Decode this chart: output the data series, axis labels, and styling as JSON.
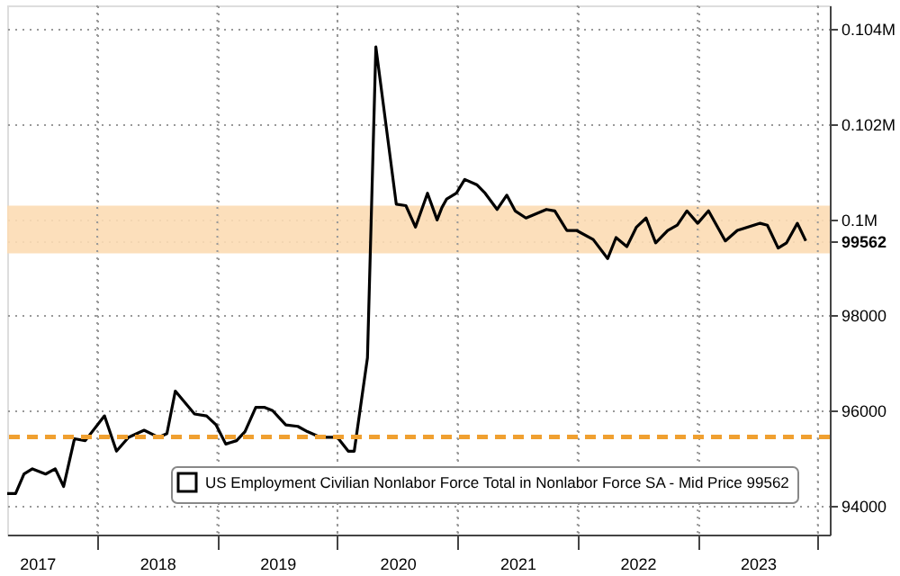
{
  "chart_data": {
    "type": "line",
    "x": [
      2017.25,
      2017.32,
      2017.39,
      2017.46,
      2017.57,
      2017.65,
      2017.72,
      2017.81,
      2017.9,
      2018.06,
      2018.16,
      2018.26,
      2018.39,
      2018.51,
      2018.58,
      2018.65,
      2018.81,
      2018.91,
      2018.99,
      2019.07,
      2019.16,
      2019.23,
      2019.32,
      2019.39,
      2019.46,
      2019.57,
      2019.67,
      2019.75,
      2019.86,
      2020.0,
      2020.09,
      2020.14,
      2020.25,
      2020.32,
      2020.49,
      2020.57,
      2020.65,
      2020.75,
      2020.83,
      2020.87,
      2020.91,
      2020.99,
      2021.06,
      2021.16,
      2021.23,
      2021.33,
      2021.41,
      2021.48,
      2021.57,
      2021.74,
      2021.81,
      2021.91,
      2021.99,
      2022.13,
      2022.25,
      2022.32,
      2022.41,
      2022.49,
      2022.57,
      2022.65,
      2022.75,
      2022.83,
      2022.91,
      2023.0,
      2023.09,
      2023.23,
      2023.33,
      2023.52,
      2023.58,
      2023.67,
      2023.74,
      2023.83,
      2023.9
    ],
    "series": [
      {
        "name": "US Employment Civilian Nonlabor Force Total in Nonlabor Force SA - Mid Price 99562",
        "color": "#000000",
        "values": [
          94260,
          94260,
          94670,
          94780,
          94670,
          94780,
          94410,
          95410,
          95370,
          95890,
          95150,
          95440,
          95590,
          95440,
          95520,
          96410,
          95930,
          95890,
          95700,
          95300,
          95370,
          95560,
          96070,
          96070,
          96000,
          95700,
          95670,
          95560,
          95440,
          95440,
          95150,
          95150,
          97110,
          103630,
          100330,
          100300,
          99850,
          100560,
          100000,
          100260,
          100440,
          100560,
          100850,
          100740,
          100560,
          100220,
          100520,
          100190,
          100040,
          100220,
          100190,
          99780,
          99780,
          99590,
          99190,
          99630,
          99440,
          99850,
          100040,
          99520,
          99780,
          99890,
          100190,
          99930,
          100190,
          99560,
          99780,
          99930,
          99890,
          99410,
          99520,
          99930,
          99562
        ]
      }
    ],
    "xlim": [
      2017.25,
      2024.1
    ],
    "xticks": [
      {
        "value": 2017.5,
        "label": "2017"
      },
      {
        "value": 2018,
        "label": null
      },
      {
        "value": 2018.5,
        "label": "2018"
      },
      {
        "value": 2019,
        "label": null
      },
      {
        "value": 2019.5,
        "label": "2019"
      },
      {
        "value": 2020,
        "label": null
      },
      {
        "value": 2020.5,
        "label": "2020"
      },
      {
        "value": 2021,
        "label": null
      },
      {
        "value": 2021.5,
        "label": "2021"
      },
      {
        "value": 2022,
        "label": null
      },
      {
        "value": 2022.5,
        "label": "2022"
      },
      {
        "value": 2023,
        "label": null
      },
      {
        "value": 2023.5,
        "label": "2023"
      },
      {
        "value": 2024,
        "label": null
      }
    ],
    "ylim": [
      93400,
      104500
    ],
    "yticks": [
      94000,
      96000,
      98000,
      {
        "value": 99562,
        "label": "99562"
      },
      {
        "value": 100000,
        "label": "0.1M"
      },
      {
        "value": 102000,
        "label": "0.102M"
      },
      {
        "value": 104000,
        "label": "0.104M"
      }
    ],
    "grid": true,
    "legend": "bottom right",
    "line_style": "solid",
    "ref_lines": [
      {
        "axis": "y",
        "value": 95450,
        "color": "#f0a030",
        "line_style": "dashed"
      }
    ],
    "bands": [
      {
        "axis": "y",
        "from": 99300,
        "to": 100300,
        "color": "#fcdcb4"
      }
    ]
  }
}
